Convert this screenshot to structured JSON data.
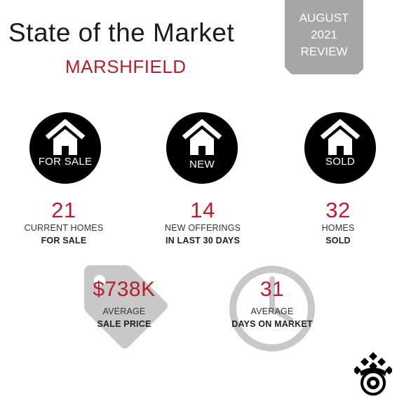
{
  "header": {
    "title": "State of the Market",
    "location": "MARSHFIELD"
  },
  "badge": {
    "line1": "AUGUST",
    "line2": "2021",
    "line3": "REVIEW"
  },
  "categories": [
    {
      "icon": "house-icon",
      "label": "FOR SALE",
      "value": "21",
      "line1": "CURRENT HOMES",
      "line2": "FOR SALE"
    },
    {
      "icon": "house-icon",
      "label": "NEW",
      "value": "14",
      "line1": "NEW OFFERINGS",
      "line2": "IN LAST 30 DAYS"
    },
    {
      "icon": "house-icon",
      "label": "SOLD",
      "value": "32",
      "line1": "HOMES",
      "line2": "SOLD"
    }
  ],
  "metrics": {
    "price": {
      "icon": "price-tag-icon",
      "value": "$738K",
      "line1": "AVERAGE",
      "line2": "SALE PRICE"
    },
    "days": {
      "icon": "clock-icon",
      "value": "31",
      "line1": "AVERAGE",
      "line2": "DAYS ON MARKET"
    }
  },
  "logo": {
    "icon": "brand-logo-icon"
  },
  "colors": {
    "accent": "#b81d2e",
    "circle": "#000000",
    "badge": "#a6a6a6",
    "icon_gray": "#c8c8c8"
  }
}
